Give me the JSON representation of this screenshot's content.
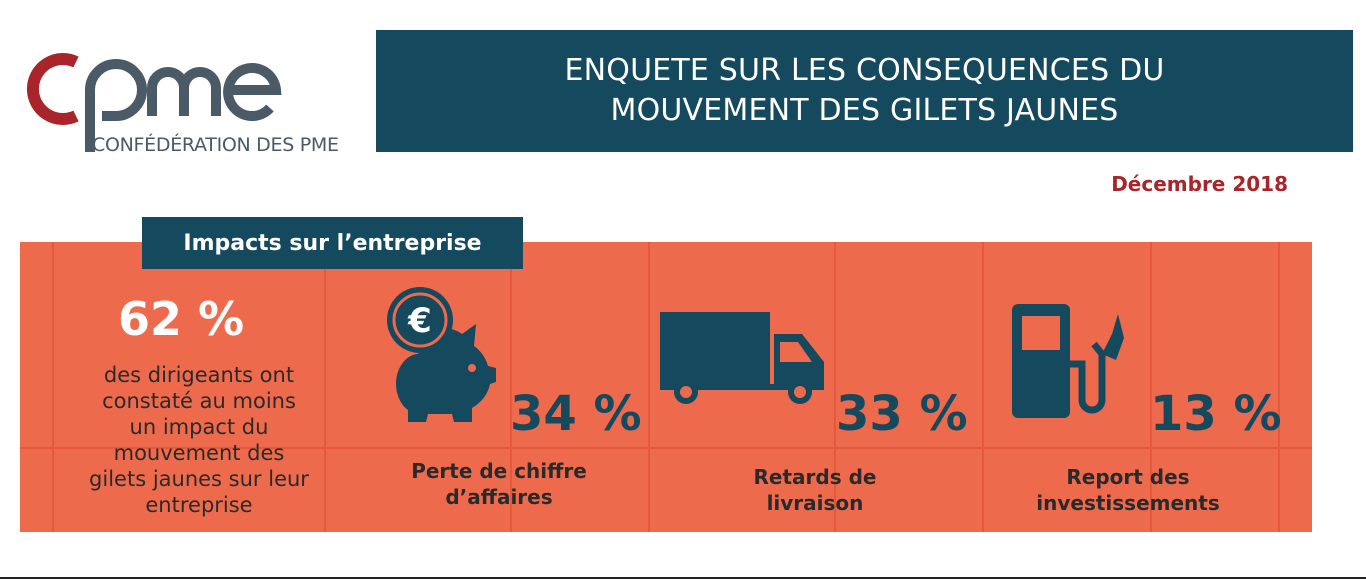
{
  "logo": {
    "mark": "cpme",
    "subtitle": "CONFÉDÉRATION DES PME",
    "colors": {
      "c": "#a8262b",
      "pme": "#4a5a66"
    }
  },
  "banner": {
    "line1": "ENQUETE SUR LES CONSEQUENCES DU",
    "line2": "MOUVEMENT DES GILETS JAUNES"
  },
  "date": "Décembre 2018",
  "section": {
    "tab": "Impacts sur l’entreprise",
    "headline": {
      "value": "62 %",
      "description": [
        "des dirigeants ont",
        "constaté au moins",
        "un impact du",
        "mouvement des",
        "gilets jaunes sur leur",
        "entreprise"
      ]
    },
    "impacts": [
      {
        "icon": "piggy-bank-euro-icon",
        "value": "34 %",
        "label": [
          "Perte de chiffre",
          "d’affaires"
        ]
      },
      {
        "icon": "truck-icon",
        "value": "33 %",
        "label": [
          "Retards de",
          "livraison"
        ]
      },
      {
        "icon": "fuel-pump-icon",
        "value": "13 %",
        "label": [
          "Report des",
          "investissements"
        ]
      }
    ]
  },
  "colors": {
    "navy": "#15495d",
    "coral": "#ee6a4d",
    "accent_red": "#a8262b"
  }
}
